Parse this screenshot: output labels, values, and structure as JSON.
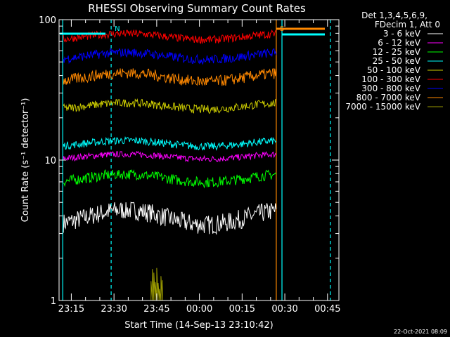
{
  "chart_data": {
    "type": "line",
    "title": "RHESSI Observing Summary Count Rates",
    "xlabel": "Start Time (14-Sep-13 23:10:42)",
    "ylabel": "Count Rate (s⁻¹ detector⁻¹)",
    "y_scale": "log",
    "ylim": [
      1,
      100
    ],
    "xlim_minutes_after_23_00": [
      10.7,
      109
    ],
    "x_ticks": [
      "23:15",
      "23:30",
      "23:45",
      "00:00",
      "00:15",
      "00:30",
      "00:45"
    ],
    "y_ticks": [
      "1",
      "10",
      "100"
    ],
    "legend_header": [
      "Det 1,3,4,5,6,9,",
      "FDecim 1, Att 0"
    ],
    "legend_position": "top-right (outside plot)",
    "series": [
      {
        "name": "3 - 6 keV",
        "color": "#ffffff",
        "range": [
          2.8,
          5.0
        ]
      },
      {
        "name": "6 - 12 keV",
        "color": "#ff00ff",
        "range": [
          9.5,
          11.5
        ]
      },
      {
        "name": "12 - 25 keV",
        "color": "#00ff00",
        "range": [
          6.2,
          8.5
        ]
      },
      {
        "name": "25 - 50 keV",
        "color": "#00ffff",
        "range": [
          11.5,
          14.5
        ]
      },
      {
        "name": "50 - 100 keV",
        "color": "#cccc00",
        "range": [
          21,
          27
        ]
      },
      {
        "name": "100 - 300 keV",
        "color": "#ff0000",
        "range": [
          66,
          84
        ]
      },
      {
        "name": "300 - 800 keV",
        "color": "#0000ff",
        "range": [
          47,
          62
        ]
      },
      {
        "name": "800 - 7000 keV",
        "color": "#ff8800",
        "range": [
          32,
          45
        ]
      },
      {
        "name": "7000 - 15000 keV",
        "color": "#999900",
        "range": [
          1.1,
          1.8
        ]
      }
    ],
    "annotations": [
      {
        "label": "N",
        "color": "#00ffff",
        "x_time": "23:29"
      },
      {
        "label": "S",
        "color": "#ff8800",
        "x_time": "00:27"
      }
    ],
    "vertical_lines": [
      {
        "color": "#00ffff",
        "style": "solid",
        "x_time": "23:12"
      },
      {
        "color": "#00ffff",
        "style": "dashed",
        "x_time": "23:29"
      },
      {
        "color": "#ff8800",
        "style": "solid",
        "x_time": "00:27"
      },
      {
        "color": "#00ffff",
        "style": "solid",
        "x_time": "00:29"
      },
      {
        "color": "#00ffff",
        "style": "dashed",
        "x_time": "00:46"
      }
    ]
  },
  "footer": {
    "timestamp": "22-Oct-2021 08:09"
  }
}
